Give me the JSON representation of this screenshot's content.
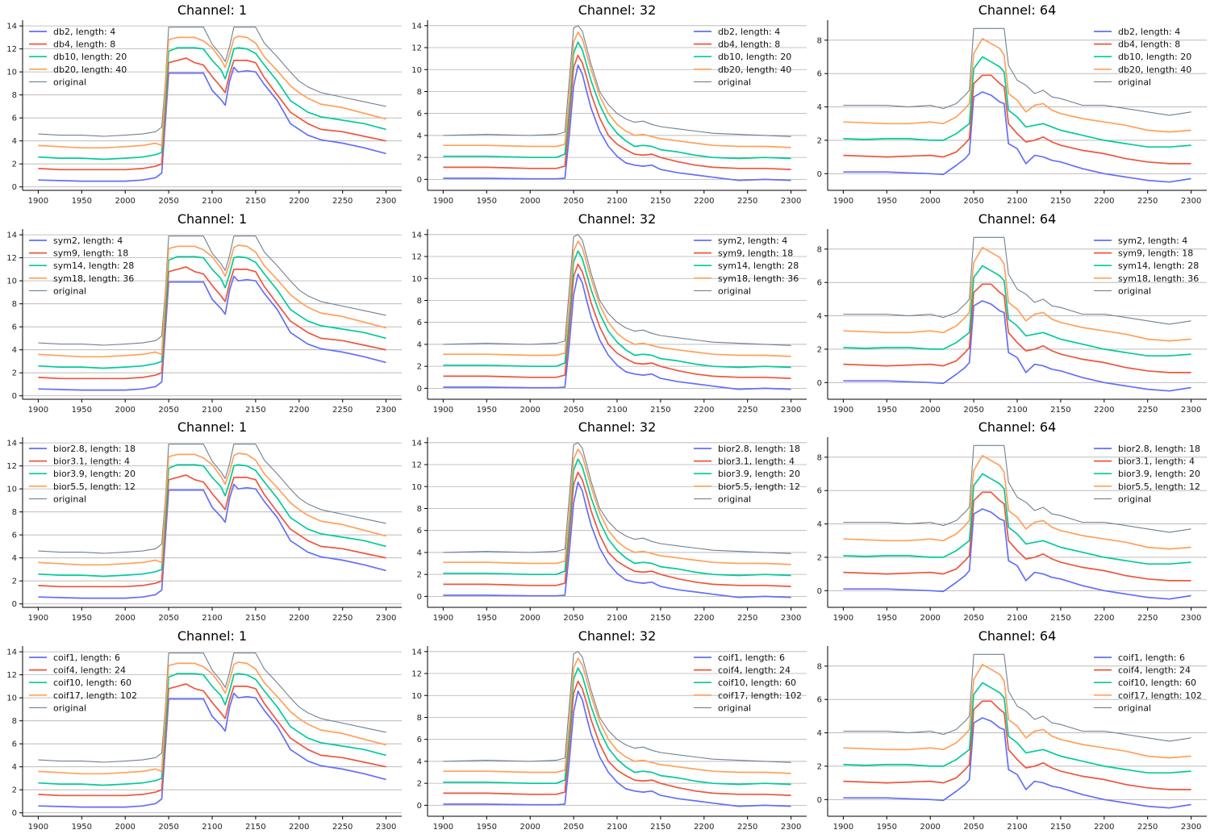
{
  "figure": {
    "rows": 4,
    "cols": 3
  },
  "palette": {
    "blue": "#636efa",
    "red": "#ef553b",
    "green": "#00cc96",
    "orange": "#ffa15a",
    "original": "#708090",
    "grid": "#b0b0b0"
  },
  "chart_data": [
    {
      "type": "line",
      "title": "Channel: 1",
      "channel": 1,
      "xlim": [
        1882,
        2318
      ],
      "ylim": [
        -0.3,
        14.5
      ],
      "yticks": [
        0,
        2,
        4,
        6,
        8,
        10,
        12,
        14
      ],
      "xticks": [
        1900,
        1950,
        2000,
        2050,
        2100,
        2150,
        2200,
        2250,
        2300
      ],
      "legend_position": "top-left",
      "series": [
        {
          "name": "db2, length: 4",
          "color_key": "blue"
        },
        {
          "name": "db4, length: 8",
          "color_key": "red"
        },
        {
          "name": "db10, length: 20",
          "color_key": "green"
        },
        {
          "name": "db20, length: 40",
          "color_key": "orange"
        },
        {
          "name": "original",
          "color_key": "original"
        }
      ]
    },
    {
      "type": "line",
      "title": "Channel: 32",
      "channel": 32,
      "xlim": [
        1882,
        2318
      ],
      "ylim": [
        -1.0,
        14.5
      ],
      "yticks": [
        0,
        2,
        4,
        6,
        8,
        10,
        12,
        14
      ],
      "xticks": [
        1900,
        1950,
        2000,
        2050,
        2100,
        2150,
        2200,
        2250,
        2300
      ],
      "legend_position": "top-right",
      "series": [
        {
          "name": "db2, length: 4",
          "color_key": "blue"
        },
        {
          "name": "db4, length: 8",
          "color_key": "red"
        },
        {
          "name": "db10, length: 20",
          "color_key": "green"
        },
        {
          "name": "db20, length: 40",
          "color_key": "orange"
        },
        {
          "name": "original",
          "color_key": "original"
        }
      ]
    },
    {
      "type": "line",
      "title": "Channel: 64",
      "channel": 64,
      "xlim": [
        1882,
        2318
      ],
      "ylim": [
        -1.0,
        9.2
      ],
      "yticks": [
        0,
        2,
        4,
        6,
        8
      ],
      "xticks": [
        1900,
        1950,
        2000,
        2050,
        2100,
        2150,
        2200,
        2250,
        2300
      ],
      "legend_position": "top-right",
      "series": [
        {
          "name": "db2, length: 4",
          "color_key": "blue"
        },
        {
          "name": "db4, length: 8",
          "color_key": "red"
        },
        {
          "name": "db10, length: 20",
          "color_key": "green"
        },
        {
          "name": "db20, length: 40",
          "color_key": "orange"
        },
        {
          "name": "original",
          "color_key": "original"
        }
      ]
    },
    {
      "type": "line",
      "title": "Channel: 1",
      "channel": 1,
      "xlim": [
        1882,
        2318
      ],
      "ylim": [
        -0.3,
        14.5
      ],
      "yticks": [
        0,
        2,
        4,
        6,
        8,
        10,
        12,
        14
      ],
      "xticks": [
        1900,
        1950,
        2000,
        2050,
        2100,
        2150,
        2200,
        2250,
        2300
      ],
      "legend_position": "top-left",
      "series": [
        {
          "name": "sym2, length: 4",
          "color_key": "blue"
        },
        {
          "name": "sym9, length: 18",
          "color_key": "red"
        },
        {
          "name": "sym14, length: 28",
          "color_key": "green"
        },
        {
          "name": "sym18, length: 36",
          "color_key": "orange"
        },
        {
          "name": "original",
          "color_key": "original"
        }
      ]
    },
    {
      "type": "line",
      "title": "Channel: 32",
      "channel": 32,
      "xlim": [
        1882,
        2318
      ],
      "ylim": [
        -1.0,
        14.5
      ],
      "yticks": [
        0,
        2,
        4,
        6,
        8,
        10,
        12,
        14
      ],
      "xticks": [
        1900,
        1950,
        2000,
        2050,
        2100,
        2150,
        2200,
        2250,
        2300
      ],
      "legend_position": "top-right",
      "series": [
        {
          "name": "sym2, length: 4",
          "color_key": "blue"
        },
        {
          "name": "sym9, length: 18",
          "color_key": "red"
        },
        {
          "name": "sym14, length: 28",
          "color_key": "green"
        },
        {
          "name": "sym18, length: 36",
          "color_key": "orange"
        },
        {
          "name": "original",
          "color_key": "original"
        }
      ]
    },
    {
      "type": "line",
      "title": "Channel: 64",
      "channel": 64,
      "xlim": [
        1882,
        2318
      ],
      "ylim": [
        -1.0,
        9.2
      ],
      "yticks": [
        0,
        2,
        4,
        6,
        8
      ],
      "xticks": [
        1900,
        1950,
        2000,
        2050,
        2100,
        2150,
        2200,
        2250,
        2300
      ],
      "legend_position": "top-right",
      "series": [
        {
          "name": "sym2, length: 4",
          "color_key": "blue"
        },
        {
          "name": "sym9, length: 18",
          "color_key": "red"
        },
        {
          "name": "sym14, length: 28",
          "color_key": "green"
        },
        {
          "name": "sym18, length: 36",
          "color_key": "orange"
        },
        {
          "name": "original",
          "color_key": "original"
        }
      ]
    },
    {
      "type": "line",
      "title": "Channel: 1",
      "channel": 1,
      "xlim": [
        1882,
        2318
      ],
      "ylim": [
        -0.3,
        14.5
      ],
      "yticks": [
        0,
        2,
        4,
        6,
        8,
        10,
        12,
        14
      ],
      "xticks": [
        1900,
        1950,
        2000,
        2050,
        2100,
        2150,
        2200,
        2250,
        2300
      ],
      "legend_position": "top-left",
      "series": [
        {
          "name": "bior2.8, length: 18",
          "color_key": "blue"
        },
        {
          "name": "bior3.1, length: 4",
          "color_key": "red"
        },
        {
          "name": "bior3.9, length: 20",
          "color_key": "green"
        },
        {
          "name": "bior5.5, length: 12",
          "color_key": "orange"
        },
        {
          "name": "original",
          "color_key": "original"
        }
      ]
    },
    {
      "type": "line",
      "title": "Channel: 32",
      "channel": 32,
      "xlim": [
        1882,
        2318
      ],
      "ylim": [
        -1.0,
        14.5
      ],
      "yticks": [
        0,
        2,
        4,
        6,
        8,
        10,
        12,
        14
      ],
      "xticks": [
        1900,
        1950,
        2000,
        2050,
        2100,
        2150,
        2200,
        2250,
        2300
      ],
      "legend_position": "top-right",
      "series": [
        {
          "name": "bior2.8, length: 18",
          "color_key": "blue"
        },
        {
          "name": "bior3.1, length: 4",
          "color_key": "red"
        },
        {
          "name": "bior3.9, length: 20",
          "color_key": "green"
        },
        {
          "name": "bior5.5, length: 12",
          "color_key": "orange"
        },
        {
          "name": "original",
          "color_key": "original"
        }
      ]
    },
    {
      "type": "line",
      "title": "Channel: 64",
      "channel": 64,
      "xlim": [
        1882,
        2318
      ],
      "ylim": [
        -1.0,
        9.2
      ],
      "yticks": [
        0,
        2,
        4,
        6,
        8
      ],
      "xticks": [
        1900,
        1950,
        2000,
        2050,
        2100,
        2150,
        2200,
        2250,
        2300
      ],
      "legend_position": "top-right",
      "series": [
        {
          "name": "bior2.8, length: 18",
          "color_key": "blue"
        },
        {
          "name": "bior3.1, length: 4",
          "color_key": "red"
        },
        {
          "name": "bior3.9, length: 20",
          "color_key": "green"
        },
        {
          "name": "bior5.5, length: 12",
          "color_key": "orange"
        },
        {
          "name": "original",
          "color_key": "original"
        }
      ]
    },
    {
      "type": "line",
      "title": "Channel: 1",
      "channel": 1,
      "xlim": [
        1882,
        2318
      ],
      "ylim": [
        -0.3,
        14.5
      ],
      "yticks": [
        0,
        2,
        4,
        6,
        8,
        10,
        12,
        14
      ],
      "xticks": [
        1900,
        1950,
        2000,
        2050,
        2100,
        2150,
        2200,
        2250,
        2300
      ],
      "legend_position": "top-left",
      "series": [
        {
          "name": "coif1, length: 6",
          "color_key": "blue"
        },
        {
          "name": "coif4, length: 24",
          "color_key": "red"
        },
        {
          "name": "coif10, length: 60",
          "color_key": "green"
        },
        {
          "name": "coif17, length: 102",
          "color_key": "orange"
        },
        {
          "name": "original",
          "color_key": "original"
        }
      ]
    },
    {
      "type": "line",
      "title": "Channel: 32",
      "channel": 32,
      "xlim": [
        1882,
        2318
      ],
      "ylim": [
        -1.0,
        14.5
      ],
      "yticks": [
        0,
        2,
        4,
        6,
        8,
        10,
        12,
        14
      ],
      "xticks": [
        1900,
        1950,
        2000,
        2050,
        2100,
        2150,
        2200,
        2250,
        2300
      ],
      "legend_position": "top-right",
      "series": [
        {
          "name": "coif1, length: 6",
          "color_key": "blue"
        },
        {
          "name": "coif4, length: 24",
          "color_key": "red"
        },
        {
          "name": "coif10, length: 60",
          "color_key": "green"
        },
        {
          "name": "coif17, length: 102",
          "color_key": "orange"
        },
        {
          "name": "original",
          "color_key": "original"
        }
      ]
    },
    {
      "type": "line",
      "title": "Channel: 64",
      "channel": 64,
      "xlim": [
        1882,
        2318
      ],
      "ylim": [
        -1.0,
        9.2
      ],
      "yticks": [
        0,
        2,
        4,
        6,
        8
      ],
      "xticks": [
        1900,
        1950,
        2000,
        2050,
        2100,
        2150,
        2200,
        2250,
        2300
      ],
      "legend_position": "top-right",
      "series": [
        {
          "name": "coif1, length: 6",
          "color_key": "blue"
        },
        {
          "name": "coif4, length: 24",
          "color_key": "red"
        },
        {
          "name": "coif10, length: 60",
          "color_key": "green"
        },
        {
          "name": "coif17, length: 102",
          "color_key": "orange"
        },
        {
          "name": "original",
          "color_key": "original"
        }
      ]
    }
  ],
  "series_values": {
    "channel_1": {
      "x": [
        1900,
        1925,
        1950,
        1975,
        2000,
        2020,
        2035,
        2042,
        2046,
        2050,
        2060,
        2070,
        2080,
        2090,
        2100,
        2110,
        2115,
        2120,
        2125,
        2130,
        2140,
        2150,
        2160,
        2175,
        2190,
        2200,
        2210,
        2225,
        2250,
        2275,
        2300
      ],
      "original": [
        4.6,
        4.5,
        4.5,
        4.4,
        4.5,
        4.6,
        4.8,
        5.2,
        9.0,
        13.9,
        13.9,
        13.9,
        13.9,
        13.9,
        12.4,
        11.5,
        10.9,
        12.2,
        13.9,
        13.9,
        13.9,
        13.9,
        12.5,
        11.3,
        10.0,
        9.2,
        8.7,
        8.2,
        7.8,
        7.4,
        7.0
      ],
      "blue": [
        0.6,
        0.55,
        0.5,
        0.5,
        0.5,
        0.6,
        0.8,
        1.2,
        5.5,
        9.9,
        9.9,
        9.9,
        9.9,
        9.9,
        8.4,
        7.6,
        7.1,
        9.2,
        10.4,
        10.0,
        10.1,
        10.0,
        8.9,
        7.5,
        5.5,
        5.0,
        4.5,
        4.1,
        3.8,
        3.4,
        2.9
      ],
      "red": [
        1.6,
        1.5,
        1.5,
        1.5,
        1.5,
        1.6,
        1.8,
        2.0,
        6.3,
        10.8,
        11.0,
        11.2,
        10.8,
        10.6,
        9.6,
        8.7,
        8.2,
        9.8,
        11.0,
        11.0,
        11.0,
        10.8,
        9.5,
        8.0,
        6.5,
        6.0,
        5.5,
        5.0,
        4.8,
        4.4,
        4.0
      ],
      "green": [
        2.6,
        2.5,
        2.5,
        2.4,
        2.5,
        2.6,
        2.8,
        3.0,
        7.3,
        11.8,
        12.1,
        12.1,
        12.1,
        12.0,
        11.0,
        10.2,
        9.4,
        10.6,
        12.0,
        12.1,
        12.0,
        11.6,
        10.6,
        9.2,
        7.5,
        7.0,
        6.5,
        6.1,
        5.8,
        5.5,
        5.0
      ],
      "orange": [
        3.6,
        3.5,
        3.4,
        3.4,
        3.5,
        3.6,
        3.8,
        3.6,
        8.5,
        12.8,
        13.0,
        13.0,
        13.0,
        12.7,
        12.1,
        11.1,
        10.4,
        11.5,
        12.9,
        13.1,
        13.0,
        12.5,
        11.3,
        10.1,
        8.8,
        8.2,
        7.7,
        7.2,
        6.9,
        6.4,
        5.9
      ]
    },
    "channel_32": {
      "x": [
        1900,
        1950,
        2000,
        2030,
        2040,
        2045,
        2050,
        2055,
        2060,
        2065,
        2070,
        2080,
        2090,
        2100,
        2110,
        2120,
        2130,
        2140,
        2150,
        2170,
        2190,
        2210,
        2240,
        2270,
        2300
      ],
      "original": [
        4.0,
        4.1,
        4.0,
        4.1,
        4.3,
        9.0,
        13.8,
        14.0,
        13.5,
        12.0,
        10.5,
        8.0,
        6.8,
        6.0,
        5.5,
        5.2,
        5.3,
        5.0,
        4.8,
        4.6,
        4.4,
        4.2,
        4.1,
        4.0,
        3.9
      ],
      "blue": [
        0.1,
        0.1,
        0.05,
        0.05,
        0.1,
        4.0,
        8.5,
        10.4,
        9.6,
        8.0,
        6.5,
        4.4,
        3.0,
        2.1,
        1.5,
        1.3,
        1.2,
        1.3,
        0.9,
        0.6,
        0.4,
        0.2,
        -0.1,
        0.0,
        -0.1
      ],
      "red": [
        1.1,
        1.1,
        1.0,
        1.0,
        1.2,
        5.5,
        10.2,
        11.3,
        10.6,
        9.3,
        7.8,
        5.6,
        4.0,
        3.2,
        2.7,
        2.3,
        2.2,
        2.3,
        2.0,
        1.6,
        1.3,
        1.1,
        1.0,
        1.0,
        0.9
      ],
      "green": [
        2.1,
        2.1,
        2.0,
        2.0,
        2.3,
        6.5,
        11.5,
        12.5,
        11.8,
        10.4,
        9.0,
        6.8,
        5.2,
        4.2,
        3.5,
        3.0,
        3.1,
        3.0,
        2.7,
        2.5,
        2.2,
        2.0,
        1.9,
        2.0,
        1.9
      ],
      "orange": [
        3.1,
        3.1,
        3.0,
        3.0,
        3.2,
        7.4,
        12.5,
        13.4,
        12.8,
        11.4,
        10.0,
        7.6,
        6.0,
        5.0,
        4.4,
        4.0,
        4.1,
        3.9,
        3.7,
        3.5,
        3.3,
        3.1,
        3.0,
        3.0,
        2.9
      ]
    },
    "channel_64": {
      "x": [
        1900,
        1925,
        1950,
        1975,
        2000,
        2015,
        2030,
        2040,
        2045,
        2050,
        2060,
        2070,
        2080,
        2085,
        2090,
        2100,
        2110,
        2120,
        2130,
        2140,
        2150,
        2175,
        2200,
        2225,
        2250,
        2275,
        2300
      ],
      "original": [
        4.1,
        4.1,
        4.1,
        4.0,
        4.1,
        3.9,
        4.2,
        4.7,
        5.0,
        8.7,
        8.7,
        8.7,
        8.7,
        8.7,
        6.5,
        5.6,
        5.3,
        4.8,
        5.0,
        4.6,
        4.5,
        4.1,
        4.1,
        3.9,
        3.7,
        3.5,
        3.7
      ],
      "blue": [
        0.1,
        0.1,
        0.1,
        0.05,
        0.0,
        -0.05,
        0.5,
        0.9,
        1.2,
        4.6,
        4.9,
        4.7,
        4.3,
        4.2,
        1.8,
        1.5,
        0.6,
        1.1,
        1.0,
        0.8,
        0.7,
        0.3,
        0.0,
        -0.2,
        -0.4,
        -0.5,
        -0.3
      ],
      "red": [
        1.1,
        1.05,
        1.0,
        1.05,
        1.1,
        1.0,
        1.3,
        1.8,
        2.1,
        5.4,
        5.9,
        5.9,
        5.4,
        5.2,
        3.0,
        2.4,
        1.9,
        2.0,
        2.2,
        1.9,
        1.7,
        1.4,
        1.2,
        0.9,
        0.7,
        0.6,
        0.6
      ],
      "green": [
        2.1,
        2.05,
        2.1,
        2.1,
        2.0,
        2.0,
        2.4,
        2.8,
        3.0,
        6.3,
        7.0,
        6.7,
        6.4,
        6.1,
        3.8,
        3.4,
        2.8,
        2.9,
        3.0,
        2.8,
        2.6,
        2.3,
        2.0,
        1.8,
        1.6,
        1.6,
        1.7
      ],
      "orange": [
        3.1,
        3.05,
        3.0,
        3.0,
        3.1,
        3.0,
        3.4,
        3.9,
        4.2,
        7.2,
        8.1,
        7.8,
        7.5,
        7.1,
        4.8,
        4.4,
        3.7,
        4.1,
        4.2,
        3.8,
        3.6,
        3.3,
        3.1,
        2.9,
        2.6,
        2.5,
        2.6
      ]
    }
  }
}
